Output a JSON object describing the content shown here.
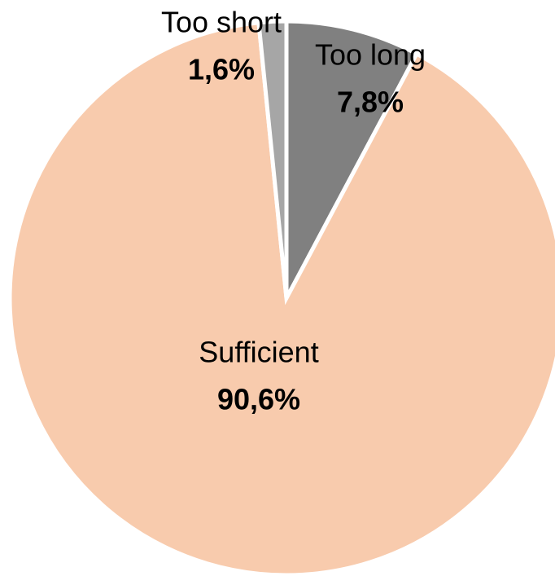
{
  "chart_data": {
    "type": "pie",
    "categories": [
      "Too long",
      "Sufficient",
      "Too short"
    ],
    "values": [
      7.8,
      90.6,
      1.6
    ],
    "value_labels": [
      "7,8%",
      "90,6%",
      "1,6%"
    ],
    "colors": [
      "#808080",
      "#f8cbad",
      "#a6a6a6"
    ]
  }
}
